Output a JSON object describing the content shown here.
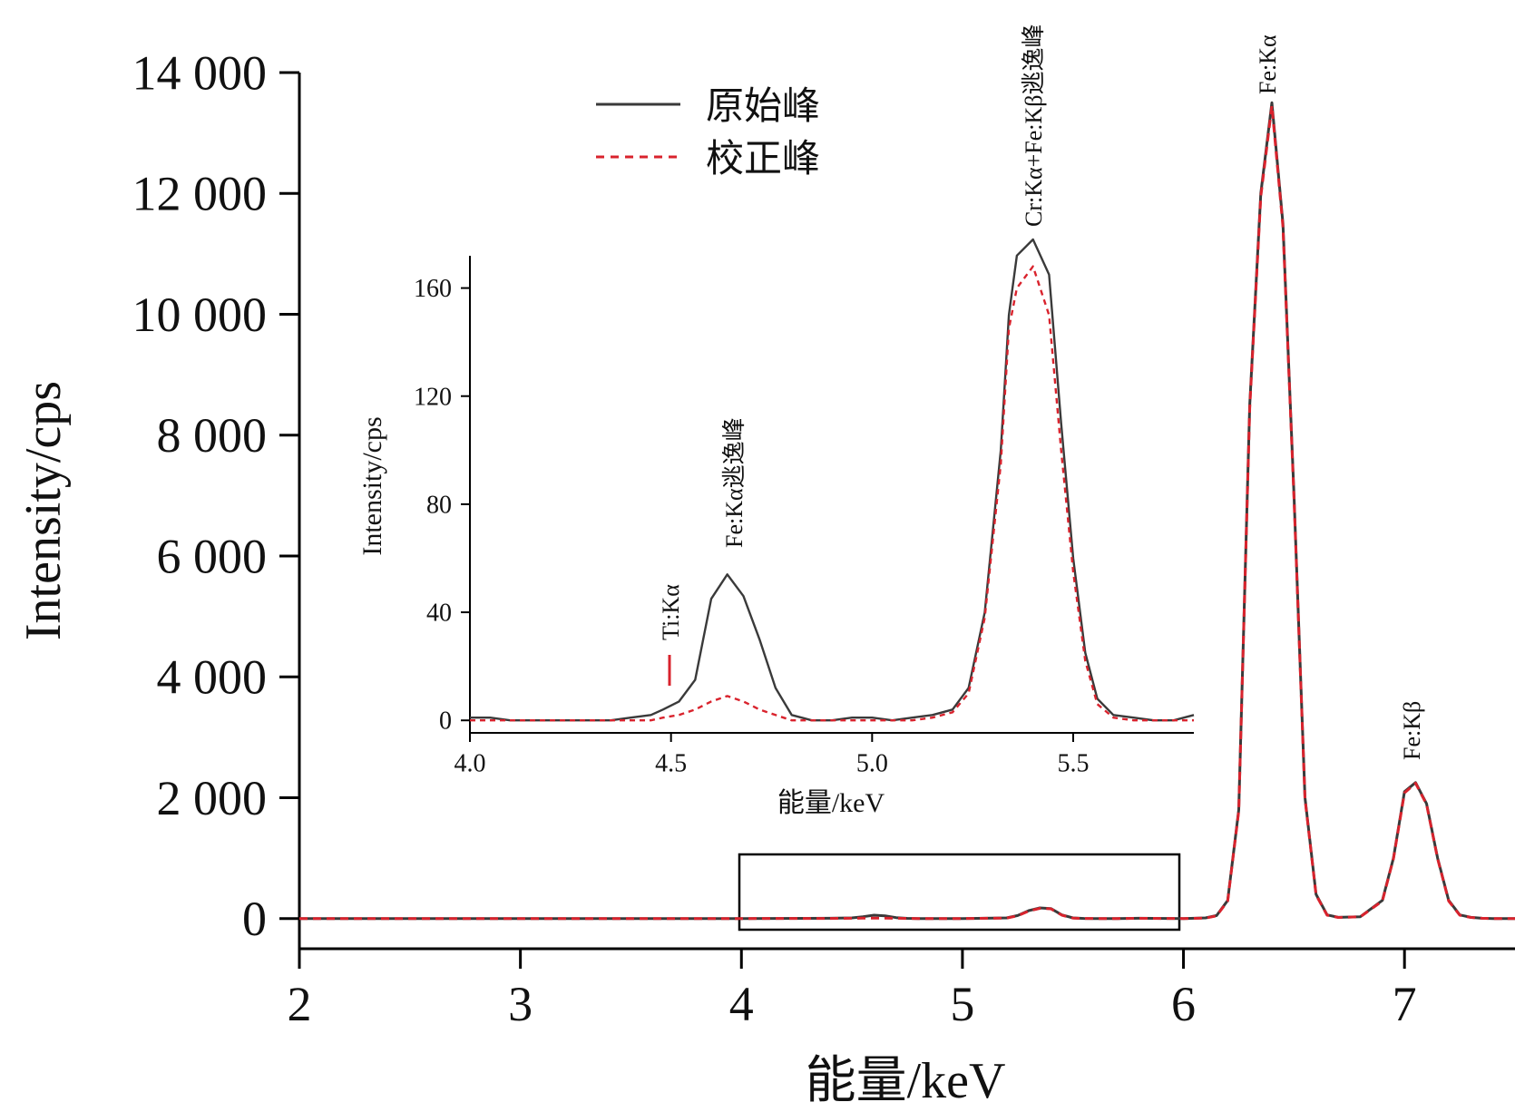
{
  "chart_data": [
    {
      "type": "line",
      "xlabel": "能量/keV",
      "ylabel": "Intensity/cps",
      "xlim": [
        2,
        7.5
      ],
      "ylim": [
        -500,
        14000
      ],
      "x_ticks": [
        "2",
        "3",
        "4",
        "5",
        "6",
        "7"
      ],
      "x_tick_values": [
        2,
        3,
        4,
        5,
        6,
        7
      ],
      "y_ticks": [
        "0",
        "2 000",
        "4 000",
        "6 000",
        "8 000",
        "10 000",
        "12 000",
        "14 000"
      ],
      "y_tick_values": [
        0,
        2000,
        4000,
        6000,
        8000,
        10000,
        12000,
        14000
      ],
      "legend": {
        "placement": "top-center",
        "entries": [
          "原始峰",
          "校正峰"
        ]
      },
      "colors": {
        "original": "#3a3a3a",
        "corrected": "#d9232d"
      },
      "series": [
        {
          "name": "原始峰",
          "style": "solid",
          "x": [
            2.0,
            3.0,
            4.0,
            4.4,
            4.5,
            4.55,
            4.6,
            4.65,
            4.7,
            4.75,
            4.8,
            5.0,
            5.2,
            5.25,
            5.3,
            5.35,
            5.4,
            5.45,
            5.5,
            5.55,
            5.6,
            5.7,
            5.8,
            6.0,
            6.1,
            6.15,
            6.2,
            6.25,
            6.3,
            6.35,
            6.4,
            6.45,
            6.5,
            6.55,
            6.6,
            6.65,
            6.7,
            6.8,
            6.9,
            6.95,
            7.0,
            7.05,
            7.1,
            7.15,
            7.2,
            7.25,
            7.3,
            7.35,
            7.4,
            7.5
          ],
          "y": [
            0,
            0,
            0,
            5,
            10,
            30,
            55,
            45,
            15,
            3,
            0,
            0,
            10,
            50,
            130,
            175,
            165,
            60,
            10,
            2,
            0,
            0,
            5,
            0,
            10,
            50,
            300,
            1800,
            8500,
            12000,
            13500,
            11500,
            7000,
            2000,
            400,
            60,
            20,
            30,
            300,
            1000,
            2100,
            2250,
            1900,
            1000,
            300,
            60,
            20,
            5,
            0,
            0
          ]
        },
        {
          "name": "校正峰",
          "style": "dashed",
          "x": [
            2.0,
            3.0,
            4.0,
            4.4,
            4.5,
            4.55,
            4.6,
            4.65,
            4.7,
            4.75,
            4.8,
            5.0,
            5.2,
            5.25,
            5.3,
            5.35,
            5.4,
            5.45,
            5.5,
            5.55,
            5.6,
            5.7,
            5.8,
            6.0,
            6.1,
            6.15,
            6.2,
            6.25,
            6.3,
            6.35,
            6.4,
            6.45,
            6.5,
            6.55,
            6.6,
            6.65,
            6.7,
            6.8,
            6.9,
            6.95,
            7.0,
            7.05,
            7.1,
            7.15,
            7.2,
            7.25,
            7.3,
            7.35,
            7.4,
            7.5
          ],
          "y": [
            0,
            0,
            0,
            2,
            4,
            6,
            8,
            7,
            4,
            1,
            0,
            0,
            8,
            45,
            125,
            168,
            160,
            55,
            8,
            1,
            0,
            0,
            3,
            0,
            8,
            45,
            290,
            1780,
            8450,
            11950,
            13450,
            11450,
            6950,
            1980,
            390,
            55,
            18,
            28,
            290,
            990,
            2080,
            2240,
            1890,
            990,
            290,
            55,
            18,
            4,
            0,
            0
          ]
        }
      ],
      "annotations": [
        "Fe:Kα",
        "Fe:Kβ"
      ]
    },
    {
      "type": "line",
      "xlabel": "能量/keV",
      "ylabel": "Intensity/cps",
      "xlim": [
        4.0,
        5.8
      ],
      "ylim": [
        -10,
        180
      ],
      "x_ticks": [
        "4.0",
        "4.5",
        "5.0",
        "5.5"
      ],
      "x_tick_values": [
        4.0,
        4.5,
        5.0,
        5.5
      ],
      "y_ticks": [
        "0",
        "40",
        "80",
        "120",
        "160"
      ],
      "y_tick_values": [
        0,
        40,
        80,
        120,
        160
      ],
      "series": [
        {
          "name": "原始峰",
          "style": "solid",
          "x": [
            4.0,
            4.05,
            4.1,
            4.15,
            4.2,
            4.25,
            4.3,
            4.35,
            4.4,
            4.45,
            4.48,
            4.52,
            4.56,
            4.6,
            4.64,
            4.68,
            4.72,
            4.76,
            4.8,
            4.85,
            4.9,
            4.95,
            5.0,
            5.05,
            5.1,
            5.15,
            5.2,
            5.24,
            5.28,
            5.32,
            5.34,
            5.36,
            5.4,
            5.44,
            5.47,
            5.5,
            5.53,
            5.56,
            5.6,
            5.65,
            5.7,
            5.75,
            5.8
          ],
          "y": [
            1,
            1,
            0,
            0,
            0,
            0,
            0,
            0,
            1,
            2,
            4,
            7,
            15,
            45,
            54,
            46,
            30,
            12,
            2,
            0,
            0,
            1,
            1,
            0,
            1,
            2,
            4,
            12,
            40,
            100,
            150,
            172,
            178,
            165,
            110,
            60,
            25,
            8,
            2,
            1,
            0,
            0,
            2
          ]
        },
        {
          "name": "校正峰",
          "style": "dashed",
          "x": [
            4.0,
            4.05,
            4.1,
            4.15,
            4.2,
            4.25,
            4.3,
            4.35,
            4.4,
            4.45,
            4.48,
            4.52,
            4.56,
            4.6,
            4.64,
            4.68,
            4.72,
            4.76,
            4.8,
            4.85,
            4.9,
            4.95,
            5.0,
            5.05,
            5.1,
            5.15,
            5.2,
            5.24,
            5.28,
            5.32,
            5.34,
            5.36,
            5.4,
            5.44,
            5.47,
            5.5,
            5.53,
            5.56,
            5.6,
            5.65,
            5.7,
            5.75,
            5.8
          ],
          "y": [
            0,
            0,
            0,
            0,
            0,
            0,
            0,
            0,
            0,
            0,
            1,
            2,
            4,
            7,
            9,
            7,
            4,
            2,
            0,
            0,
            0,
            0,
            0,
            0,
            0,
            1,
            3,
            10,
            38,
            95,
            145,
            160,
            168,
            150,
            100,
            55,
            22,
            6,
            1,
            0,
            0,
            0,
            0
          ]
        }
      ],
      "annotations": [
        "Ti:Kα",
        "Fe:Kα逃逸峰",
        "Cr:Kα+Fe:Kβ逃逸峰"
      ]
    }
  ]
}
